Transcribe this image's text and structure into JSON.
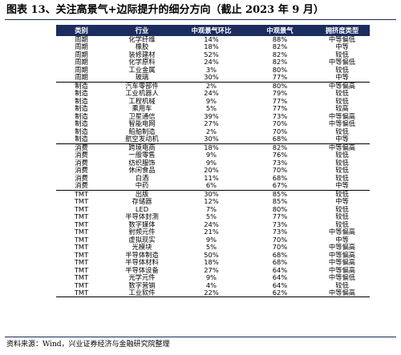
{
  "title": "图表 13、关注高景气+边际提升的细分方向（截止 2023 年 9 月）",
  "table": {
    "headers": [
      "类别",
      "行业",
      "中观景气环比",
      "中观景气",
      "拥挤度类型"
    ],
    "rows": [
      [
        "周期",
        "化学纤维",
        "14%",
        "88%",
        "中等偏低"
      ],
      [
        "周期",
        "橡胶",
        "18%",
        "82%",
        "中等"
      ],
      [
        "周期",
        "装修建材",
        "52%",
        "82%",
        "较低"
      ],
      [
        "周期",
        "化学原料",
        "24%",
        "82%",
        "中等偏低"
      ],
      [
        "周期",
        "工业金属",
        "3%",
        "80%",
        "较低"
      ],
      [
        "周期",
        "玻璃",
        "30%",
        "77%",
        "中等"
      ],
      [
        "制造",
        "汽车零部件",
        "2%",
        "80%",
        "中等偏高"
      ],
      [
        "制造",
        "工业机器人",
        "24%",
        "79%",
        "较低"
      ],
      [
        "制造",
        "工程机械",
        "9%",
        "77%",
        "较低"
      ],
      [
        "制造",
        "乘用车",
        "5%",
        "77%",
        "较高"
      ],
      [
        "制造",
        "卫星通信",
        "39%",
        "73%",
        "中等偏高"
      ],
      [
        "制造",
        "智能电网",
        "27%",
        "70%",
        "中等偏低"
      ],
      [
        "制造",
        "船舶制造",
        "2%",
        "70%",
        "较低"
      ],
      [
        "制造",
        "航空发动机",
        "30%",
        "68%",
        "中等"
      ],
      [
        "消费",
        "跨境电商",
        "18%",
        "82%",
        "中等偏高"
      ],
      [
        "消费",
        "一般零售",
        "9%",
        "76%",
        "较低"
      ],
      [
        "消费",
        "纺织服饰",
        "9%",
        "73%",
        "较低"
      ],
      [
        "消费",
        "休闲食品",
        "20%",
        "70%",
        "较低"
      ],
      [
        "消费",
        "白酒",
        "11%",
        "68%",
        "较低"
      ],
      [
        "消费",
        "中药",
        "6%",
        "67%",
        "中等"
      ],
      [
        "TMT",
        "出版",
        "30%",
        "85%",
        "较低"
      ],
      [
        "TMT",
        "存储器",
        "12%",
        "85%",
        "中等"
      ],
      [
        "TMT",
        "LED",
        "7%",
        "80%",
        "较低"
      ],
      [
        "TMT",
        "半导体封测",
        "5%",
        "77%",
        "较低"
      ],
      [
        "TMT",
        "数字媒体",
        "24%",
        "73%",
        "较低"
      ],
      [
        "TMT",
        "射频元件",
        "21%",
        "73%",
        "中等偏高"
      ],
      [
        "TMT",
        "虚拟现实",
        "9%",
        "70%",
        "中等"
      ],
      [
        "TMT",
        "光模块",
        "5%",
        "70%",
        "中等偏高"
      ],
      [
        "TMT",
        "半导体制造",
        "50%",
        "68%",
        "中等偏高"
      ],
      [
        "TMT",
        "半导体材料",
        "18%",
        "68%",
        "中等偏高"
      ],
      [
        "TMT",
        "半导体设备",
        "27%",
        "64%",
        "中等偏高"
      ],
      [
        "TMT",
        "光学元件",
        "9%",
        "64%",
        "中等偏低"
      ],
      [
        "TMT",
        "数字营销",
        "4%",
        "64%",
        "较低"
      ],
      [
        "TMT",
        "工业软件",
        "22%",
        "62%",
        "中等偏高"
      ]
    ]
  },
  "source": "资料来源：Wind，兴业证券经济与金融研究院整理",
  "colors": {
    "header_bg": "#1b2c5e",
    "header_text": "#ffffff"
  }
}
